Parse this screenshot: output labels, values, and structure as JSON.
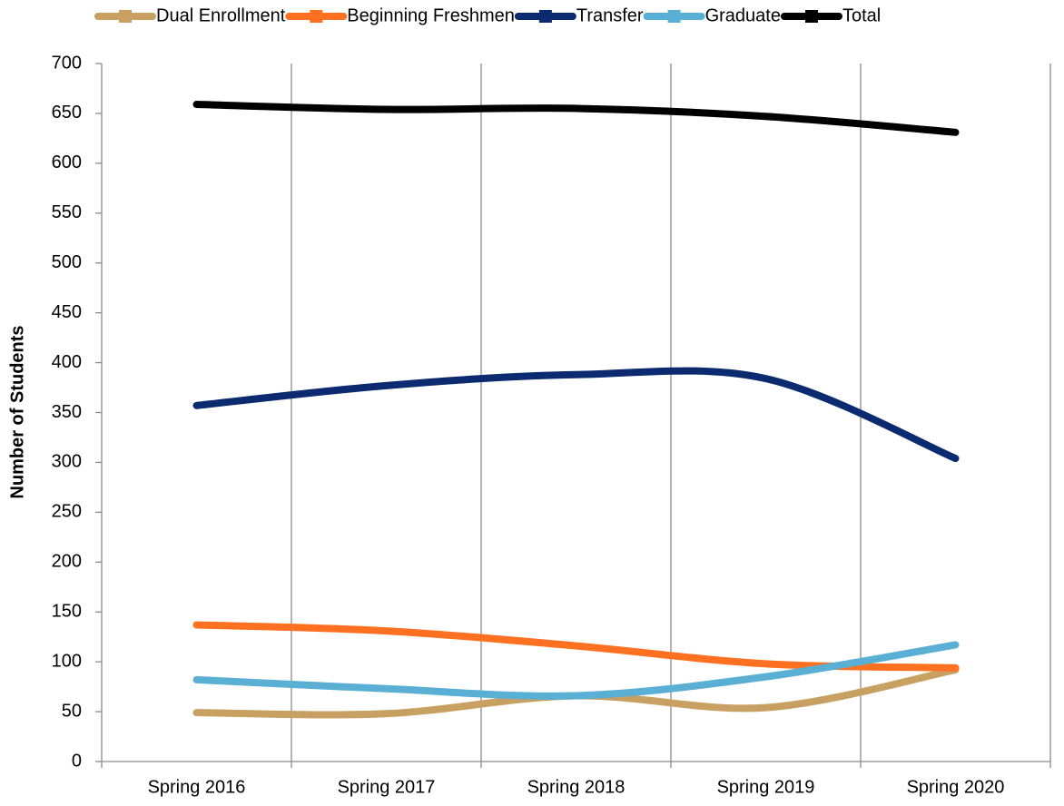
{
  "chart_data": {
    "type": "line",
    "y_label": "Number of Students",
    "categories": [
      "Spring 2016",
      "Spring 2017",
      "Spring 2018",
      "Spring 2019",
      "Spring 2020"
    ],
    "series": [
      {
        "name": "Dual Enrollment",
        "color": "#c8a062",
        "values": [
          49,
          48,
          66,
          54,
          92
        ]
      },
      {
        "name": "Beginning Freshmen",
        "color": "#ff7020",
        "values": [
          137,
          131,
          116,
          98,
          94
        ]
      },
      {
        "name": "Transfer",
        "color": "#0b2a6f",
        "values": [
          357,
          377,
          388,
          384,
          304
        ]
      },
      {
        "name": "Graduate",
        "color": "#5aafd5",
        "values": [
          82,
          73,
          66,
          85,
          117
        ]
      },
      {
        "name": "Total",
        "color": "#000000",
        "values": [
          659,
          654,
          655,
          647,
          631
        ]
      }
    ],
    "ylim": [
      0,
      700
    ],
    "yticks": [
      0,
      50,
      100,
      150,
      200,
      250,
      300,
      350,
      400,
      450,
      500,
      550,
      600,
      650,
      700
    ],
    "x_grid": true,
    "smooth": true,
    "legend": "top"
  }
}
